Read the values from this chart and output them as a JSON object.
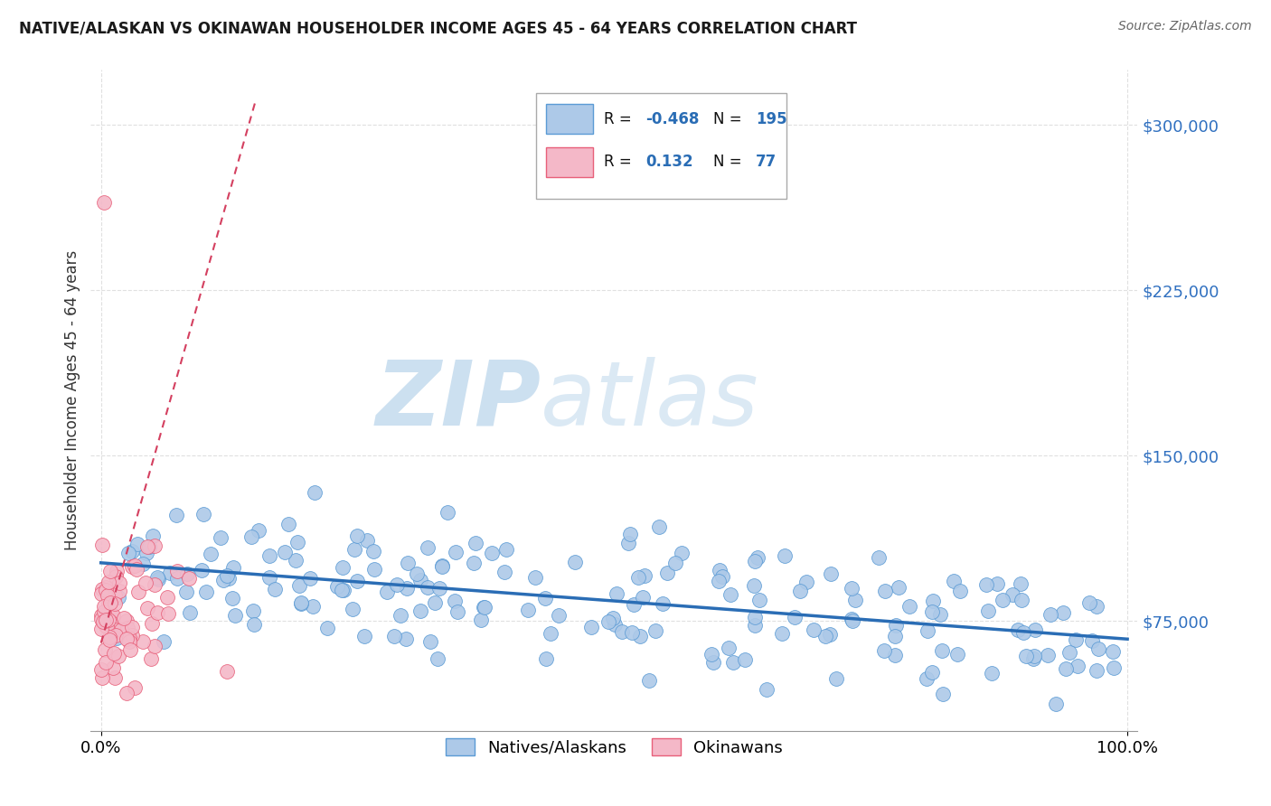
{
  "title": "NATIVE/ALASKAN VS OKINAWAN HOUSEHOLDER INCOME AGES 45 - 64 YEARS CORRELATION CHART",
  "source": "Source: ZipAtlas.com",
  "ylabel": "Householder Income Ages 45 - 64 years",
  "xlim": [
    -1.0,
    101.0
  ],
  "ylim": [
    25000,
    325000
  ],
  "yticks": [
    75000,
    150000,
    225000,
    300000
  ],
  "ytick_labels": [
    "$75,000",
    "$150,000",
    "$225,000",
    "$300,000"
  ],
  "xtick_positions": [
    0,
    100
  ],
  "xtick_labels": [
    "0.0%",
    "100.0%"
  ],
  "blue_color": "#adc9e8",
  "blue_edge": "#5b9bd5",
  "pink_color": "#f4b8c8",
  "pink_edge": "#e8607a",
  "trend_blue_color": "#2a6db5",
  "trend_pink_color": "#d44060",
  "watermark_color": "#cce0f0",
  "background_color": "#ffffff",
  "grid_color": "#cccccc",
  "title_color": "#1a1a1a",
  "source_color": "#666666",
  "ylabel_color": "#333333",
  "ytick_color": "#3070c0",
  "legend_r1_label": "R = -0.468",
  "legend_n1_label": "N = 195",
  "legend_r2_label": "R =   0.132",
  "legend_n2_label": "N =  77",
  "seed": 42
}
